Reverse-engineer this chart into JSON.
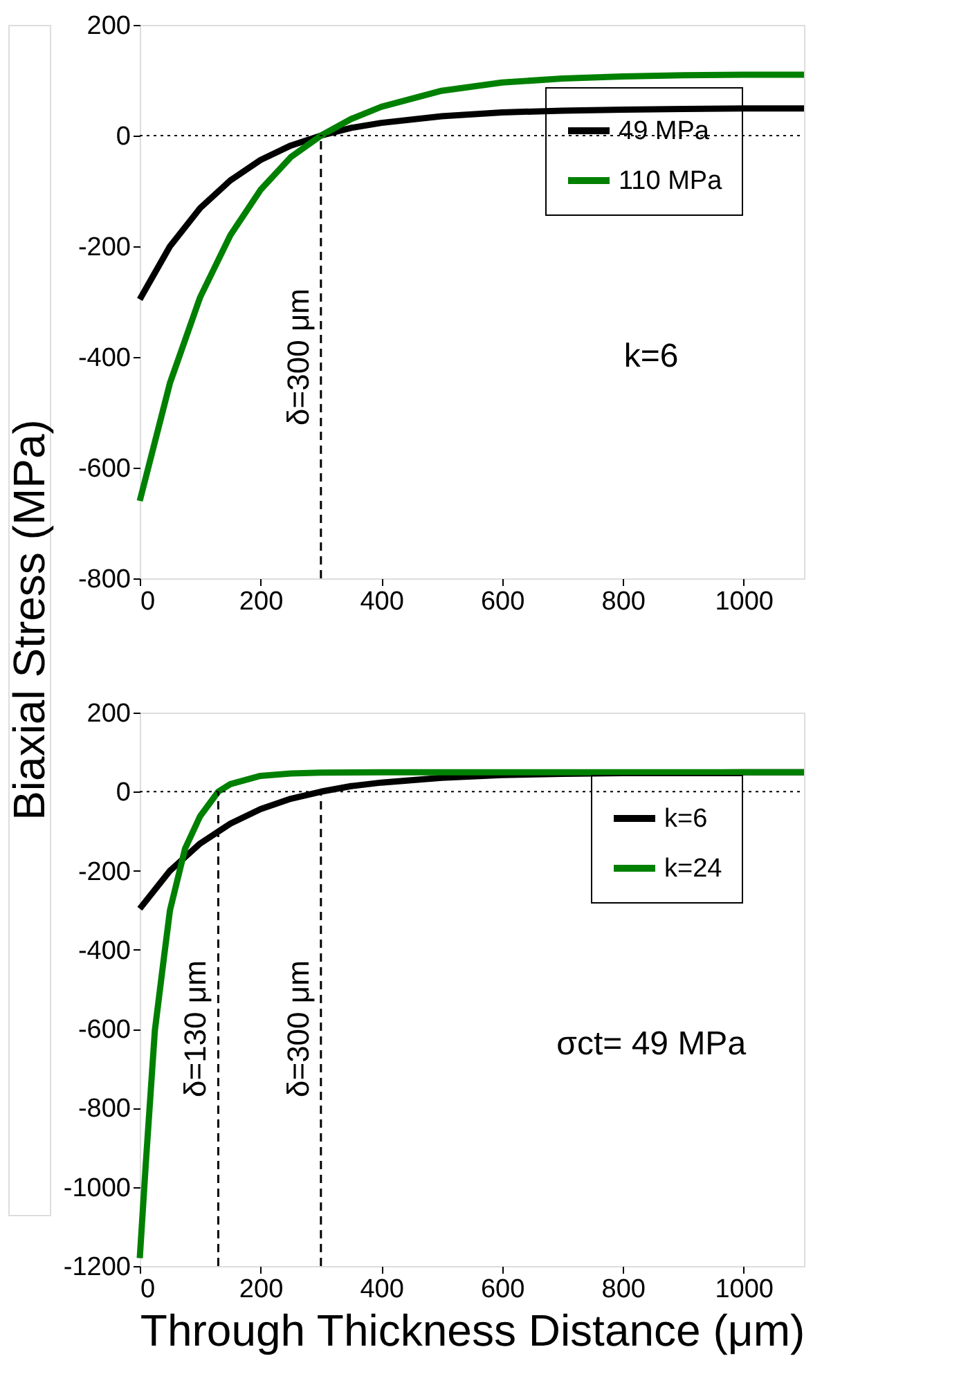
{
  "chart_data": [
    {
      "type": "line",
      "ylabel": "Biaxial Stress (MPa)",
      "xlim": [
        0,
        1100
      ],
      "xticks": [
        0,
        200,
        400,
        600,
        800,
        1000
      ],
      "ylim": [
        -800,
        200
      ],
      "yticks": [
        -800,
        -600,
        -400,
        -200,
        0,
        200
      ],
      "grid": false,
      "legend": "top right",
      "line_style": "solid",
      "marker": "none",
      "series": [
        {
          "name": "49 MPa",
          "color": "#000000",
          "x": [
            0,
            50,
            100,
            150,
            200,
            250,
            300,
            350,
            400,
            500,
            600,
            700,
            800,
            900,
            1000,
            1100
          ],
          "values": [
            -296,
            -200,
            -131,
            -81,
            -44,
            -18,
            0,
            14,
            23,
            35,
            42,
            45,
            47,
            48,
            49,
            49
          ]
        },
        {
          "name": "110 MPa",
          "color": "#008000",
          "x": [
            0,
            50,
            100,
            150,
            200,
            250,
            300,
            350,
            400,
            500,
            600,
            700,
            800,
            900,
            1000,
            1100
          ],
          "values": [
            -660,
            -447,
            -292,
            -180,
            -98,
            -39,
            0,
            30,
            52,
            81,
            96,
            103,
            107,
            109,
            110,
            110
          ]
        }
      ],
      "ref_lines": [
        {
          "axis": "y",
          "value": 0,
          "line_style": "dotted",
          "color": "#000000"
        },
        {
          "axis": "x",
          "value": 300,
          "label": "δ=300 μm",
          "line_style": "dashed",
          "color": "#000000"
        }
      ],
      "annotations": [
        "k=6"
      ]
    },
    {
      "type": "line",
      "xlabel": "Through Thickness Distance (μm)",
      "xlim": [
        0,
        1100
      ],
      "xticks": [
        0,
        200,
        400,
        600,
        800,
        1000
      ],
      "ylim": [
        -1200,
        200
      ],
      "yticks": [
        -1200,
        -1000,
        -800,
        -600,
        -400,
        -200,
        0,
        200
      ],
      "grid": false,
      "legend": "top right",
      "line_style": "solid",
      "marker": "none",
      "series": [
        {
          "name": "k=6",
          "color": "#000000",
          "x": [
            0,
            50,
            100,
            150,
            200,
            250,
            300,
            350,
            400,
            500,
            600,
            700,
            800,
            900,
            1000,
            1100
          ],
          "values": [
            -296,
            -200,
            -131,
            -81,
            -44,
            -18,
            0,
            14,
            23,
            35,
            42,
            45,
            47,
            48,
            49,
            49
          ]
        },
        {
          "name": "k=24",
          "color": "#008000",
          "x": [
            0,
            10,
            25,
            40,
            50,
            75,
            100,
            130,
            150,
            200,
            250,
            300,
            400,
            600,
            800,
            1100
          ],
          "values": [
            -1180,
            -940,
            -604,
            -420,
            -300,
            -144,
            -62,
            0,
            19,
            40,
            46,
            48,
            49,
            49,
            49,
            49
          ]
        }
      ],
      "ref_lines": [
        {
          "axis": "y",
          "value": 0,
          "line_style": "dotted",
          "color": "#000000"
        },
        {
          "axis": "x",
          "value": 130,
          "label": "δ=130 μm",
          "line_style": "dashed",
          "color": "#000000"
        },
        {
          "axis": "x",
          "value": 300,
          "label": "δ=300 μm",
          "line_style": "dashed",
          "color": "#000000"
        }
      ],
      "annotations": [
        "σct= 49 MPa"
      ]
    }
  ]
}
